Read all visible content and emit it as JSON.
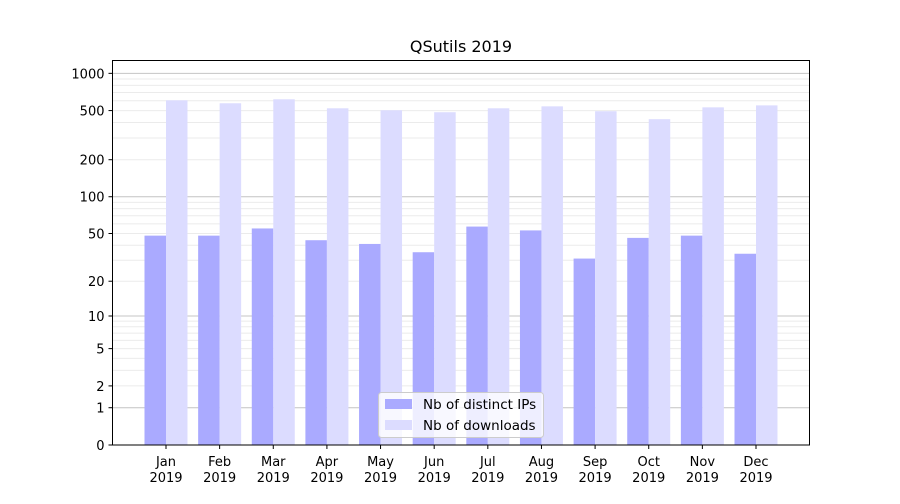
{
  "chart_data": {
    "type": "bar",
    "title": "QSutils 2019",
    "xlabel": "",
    "ylabel": "",
    "yscale": "log10(y+1)",
    "ylim": [
      0,
      1270
    ],
    "yticks": [
      0,
      1,
      2,
      5,
      10,
      20,
      50,
      100,
      200,
      500,
      1000
    ],
    "grid": true,
    "legend_position": "bottom-center",
    "categories": [
      "Jan\n2019",
      "Feb\n2019",
      "Mar\n2019",
      "Apr\n2019",
      "May\n2019",
      "Jun\n2019",
      "Jul\n2019",
      "Aug\n2019",
      "Sep\n2019",
      "Oct\n2019",
      "Nov\n2019",
      "Dec\n2019"
    ],
    "series": [
      {
        "name": "Nb of distinct IPs",
        "color": "#aaaaff",
        "values": [
          48,
          48,
          55,
          44,
          41,
          35,
          57,
          53,
          31,
          46,
          48,
          34
        ]
      },
      {
        "name": "Nb of downloads",
        "color": "#dcdcff",
        "values": [
          605,
          573,
          617,
          522,
          503,
          485,
          522,
          541,
          494,
          426,
          531,
          551
        ]
      }
    ]
  }
}
